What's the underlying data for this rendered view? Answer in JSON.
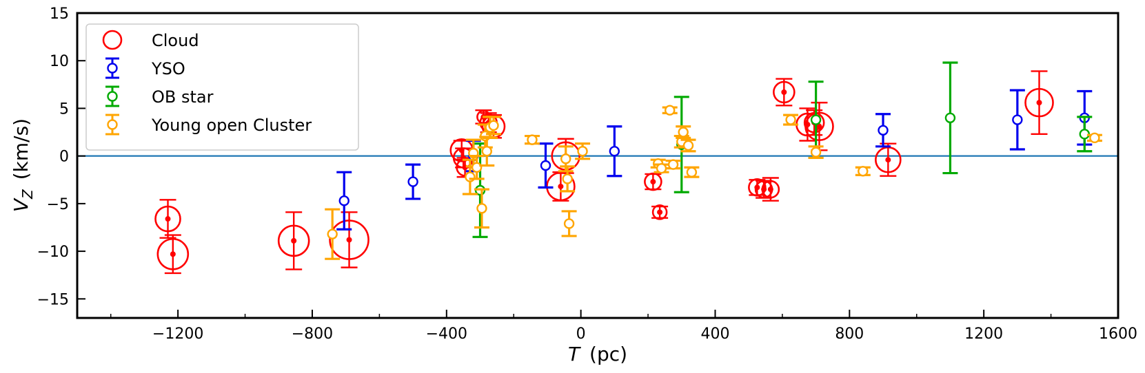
{
  "chart_data": {
    "type": "scatter",
    "title": "",
    "xlabel": "T",
    "xlabel_unit": "(pc)",
    "ylabel": "V",
    "ylabel_sub": "Z",
    "ylabel_unit": "(km/s)",
    "xlim": [
      -1500,
      1600
    ],
    "ylim": [
      -17,
      15
    ],
    "xticks": [
      -1200,
      -800,
      -400,
      0,
      400,
      800,
      1200,
      1600
    ],
    "xtick_labels": [
      "−1200",
      "−800",
      "−400",
      "0",
      "400",
      "800",
      "1200",
      "1600"
    ],
    "yticks": [
      -15,
      -10,
      -5,
      0,
      5,
      10,
      15
    ],
    "ytick_labels": [
      "−15",
      "−10",
      "−5",
      "0",
      "5",
      "10",
      "15"
    ],
    "reference_line": {
      "y": 0,
      "color": "#1f77b4"
    },
    "legend_position": "upper-left",
    "series": [
      {
        "name": "Cloud",
        "color": "#ff0000",
        "marker": "ring-with-dot",
        "points": [
          {
            "x": -1230,
            "y": -6.6,
            "err": 2.0,
            "size": 18
          },
          {
            "x": -1215,
            "y": -10.3,
            "err": 2.0,
            "size": 22
          },
          {
            "x": -855,
            "y": -8.9,
            "err": 3.0,
            "size": 22
          },
          {
            "x": -690,
            "y": -8.8,
            "err": 2.9,
            "size": 28
          },
          {
            "x": -355,
            "y": 0.6,
            "err": 1.0,
            "size": 16
          },
          {
            "x": -350,
            "y": -0.2,
            "err": 1.0,
            "size": 14
          },
          {
            "x": -345,
            "y": -1.2,
            "err": 1.0,
            "size": 12
          },
          {
            "x": -290,
            "y": 4.1,
            "err": 0.7,
            "size": 9
          },
          {
            "x": -275,
            "y": 3.5,
            "err": 1.0,
            "size": 12
          },
          {
            "x": -260,
            "y": 3.1,
            "err": 1.2,
            "size": 16
          },
          {
            "x": -60,
            "y": -3.2,
            "err": 1.5,
            "size": 20
          },
          {
            "x": -45,
            "y": 0.0,
            "err": 1.8,
            "size": 20
          },
          {
            "x": 215,
            "y": -2.7,
            "err": 0.8,
            "size": 12
          },
          {
            "x": 235,
            "y": -5.9,
            "err": 0.6,
            "size": 10
          },
          {
            "x": 525,
            "y": -3.3,
            "err": 0.8,
            "size": 12
          },
          {
            "x": 545,
            "y": -3.5,
            "err": 0.9,
            "size": 12
          },
          {
            "x": 565,
            "y": -3.5,
            "err": 1.2,
            "size": 12
          },
          {
            "x": 605,
            "y": 6.7,
            "err": 1.4,
            "size": 15
          },
          {
            "x": 675,
            "y": 3.3,
            "err": 1.7,
            "size": 16
          },
          {
            "x": 695,
            "y": 3.5,
            "err": 1.3,
            "size": 14
          },
          {
            "x": 710,
            "y": 3.1,
            "err": 2.5,
            "size": 20
          },
          {
            "x": 915,
            "y": -0.4,
            "err": 1.7,
            "size": 18
          },
          {
            "x": 1365,
            "y": 5.6,
            "err": 3.3,
            "size": 20
          }
        ]
      },
      {
        "name": "YSO",
        "color": "#0000ee",
        "marker": "open-circle",
        "points": [
          {
            "x": -705,
            "y": -4.7,
            "err": 3.0
          },
          {
            "x": -500,
            "y": -2.7,
            "err": 1.8
          },
          {
            "x": -320,
            "y": 0.0,
            "err": 1.6
          },
          {
            "x": -105,
            "y": -1.0,
            "err": 2.3
          },
          {
            "x": 100,
            "y": 0.5,
            "err": 2.6
          },
          {
            "x": 900,
            "y": 2.7,
            "err": 1.7
          },
          {
            "x": 1300,
            "y": 3.8,
            "err": 3.1
          },
          {
            "x": 1500,
            "y": 4.0,
            "err": 2.8
          }
        ]
      },
      {
        "name": "OB star",
        "color": "#00aa00",
        "marker": "open-circle",
        "points": [
          {
            "x": -300,
            "y": -3.6,
            "err": 4.9
          },
          {
            "x": 300,
            "y": 1.2,
            "err": 5.0
          },
          {
            "x": 700,
            "y": 3.8,
            "err": 4.0
          },
          {
            "x": 1100,
            "y": 4.0,
            "err": 5.8
          },
          {
            "x": 1500,
            "y": 2.3,
            "err": 1.8
          }
        ]
      },
      {
        "name": "Young open Cluster",
        "color": "#ffa500",
        "marker": "open-circle",
        "points": [
          {
            "x": -740,
            "y": -8.2,
            "err": 2.6
          },
          {
            "x": -330,
            "y": -2.2,
            "err": 1.8
          },
          {
            "x": -320,
            "y": 0.3,
            "err": 1.4
          },
          {
            "x": -310,
            "y": -1.2,
            "err": 1.2
          },
          {
            "x": -295,
            "y": -5.5,
            "err": 2.0
          },
          {
            "x": -285,
            "y": 2.1,
            "err": 1.2
          },
          {
            "x": -280,
            "y": 0.5,
            "err": 1.5
          },
          {
            "x": -270,
            "y": 3.0,
            "err": 1.1
          },
          {
            "x": -260,
            "y": 3.2,
            "err": 0.9
          },
          {
            "x": -145,
            "y": 1.7,
            "err": 0.4
          },
          {
            "x": -45,
            "y": -0.3,
            "err": 1.3
          },
          {
            "x": -40,
            "y": -2.4,
            "err": 1.3
          },
          {
            "x": -35,
            "y": -7.1,
            "err": 1.3
          },
          {
            "x": 5,
            "y": 0.5,
            "err": 0.8
          },
          {
            "x": 230,
            "y": -0.8,
            "err": 0.4
          },
          {
            "x": 240,
            "y": -1.3,
            "err": 0.4
          },
          {
            "x": 265,
            "y": 4.8,
            "err": 0.3
          },
          {
            "x": 275,
            "y": -0.9,
            "err": 0.4
          },
          {
            "x": 300,
            "y": 1.5,
            "err": 0.6
          },
          {
            "x": 305,
            "y": 2.5,
            "err": 0.6
          },
          {
            "x": 320,
            "y": 1.1,
            "err": 0.6
          },
          {
            "x": 330,
            "y": -1.7,
            "err": 0.5
          },
          {
            "x": 625,
            "y": 3.8,
            "err": 0.5
          },
          {
            "x": 700,
            "y": 0.4,
            "err": 0.6
          },
          {
            "x": 840,
            "y": -1.6,
            "err": 0.4
          },
          {
            "x": 1530,
            "y": 1.9,
            "err": 0.3
          }
        ]
      }
    ]
  }
}
